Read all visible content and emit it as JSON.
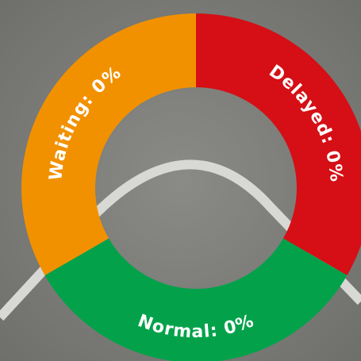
{
  "segments": [
    {
      "label": "Delayed: 0%"
    },
    {
      "label": "Waiting: 0%"
    },
    {
      "label": "Normal: 0%"
    }
  ]
}
